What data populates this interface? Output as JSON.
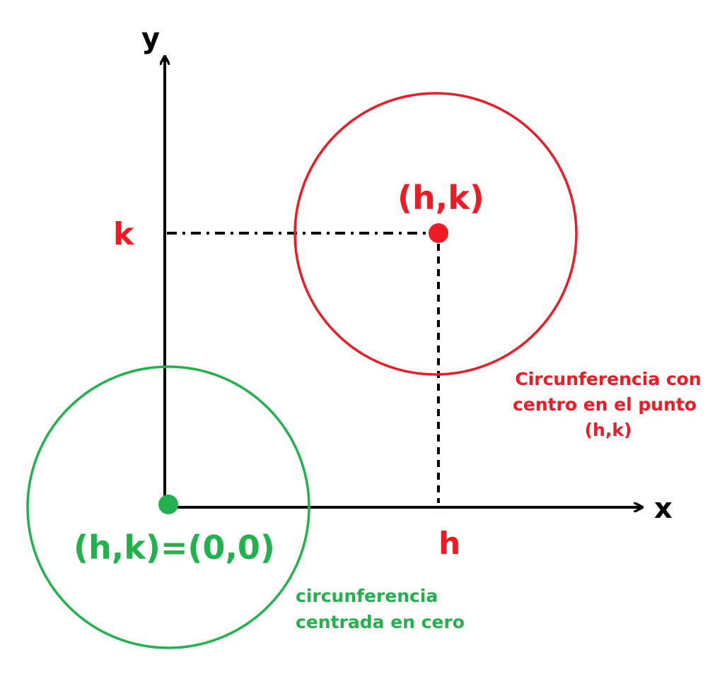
{
  "colors": {
    "red": "#ed1c24",
    "green": "#22b14c",
    "axis": "#000000",
    "background": "#ffffff"
  },
  "axes": {
    "x_label": "x",
    "y_label": "y"
  },
  "labels": {
    "k": "k",
    "h": "h",
    "center_point": "(h,k)",
    "origin_point": "(h,k)=(0,0)"
  },
  "captions": {
    "red_circle": [
      "Circunferencia con",
      "centro en el punto",
      "(h,k)"
    ],
    "green_circle": [
      "circunferencia",
      "centrada en cero"
    ]
  }
}
